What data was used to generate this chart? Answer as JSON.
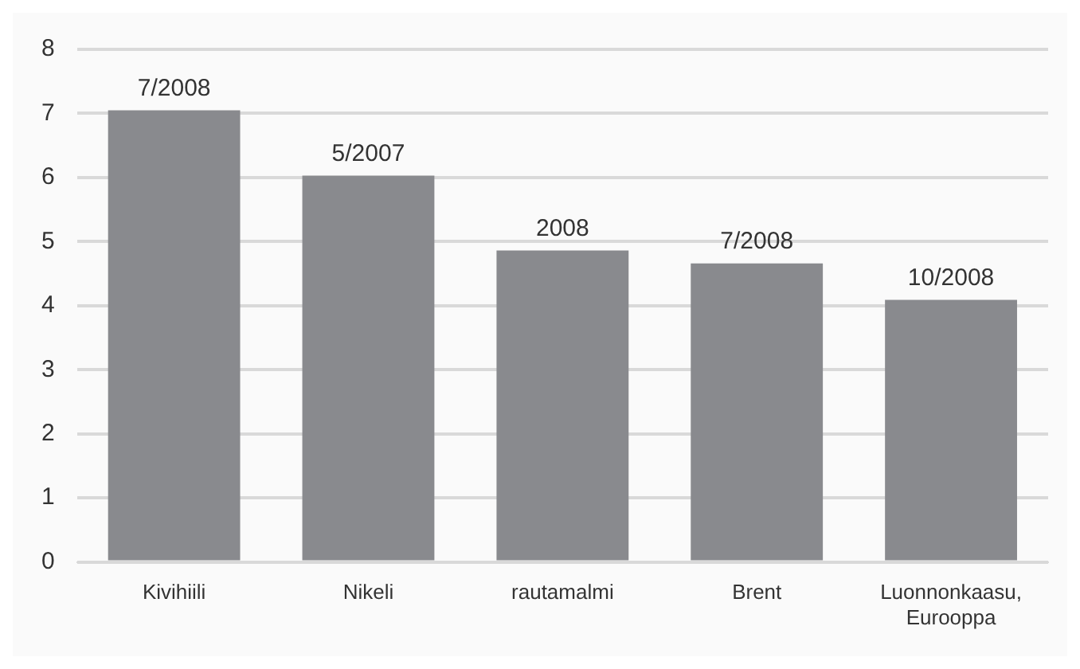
{
  "chart_data": {
    "type": "bar",
    "categories": [
      "Kivihiili",
      "Nikeli",
      "rautamalmi",
      "Brent",
      "Luonnonkaasu, Eurooppa"
    ],
    "values": [
      7.05,
      6.03,
      4.86,
      4.66,
      4.09
    ],
    "annotations": [
      {
        "text": "7/2008",
        "x": "Kivihiili",
        "y": 7.05
      },
      {
        "text": "5/2007",
        "x": "Nikeli",
        "y": 6.03
      },
      {
        "text": "2008",
        "x": "rautamalmi",
        "y": 4.86
      },
      {
        "text": "7/2008",
        "x": "Brent",
        "y": 4.66
      },
      {
        "text": "10/2008",
        "x": "Luonnonkaasu, Eurooppa",
        "y": 4.09
      }
    ],
    "color": "#898a8e",
    "ylim": [
      0,
      8
    ],
    "yticks": [
      0,
      1,
      2,
      3,
      4,
      5,
      6,
      7,
      8
    ],
    "grid": "y",
    "legend": false
  }
}
